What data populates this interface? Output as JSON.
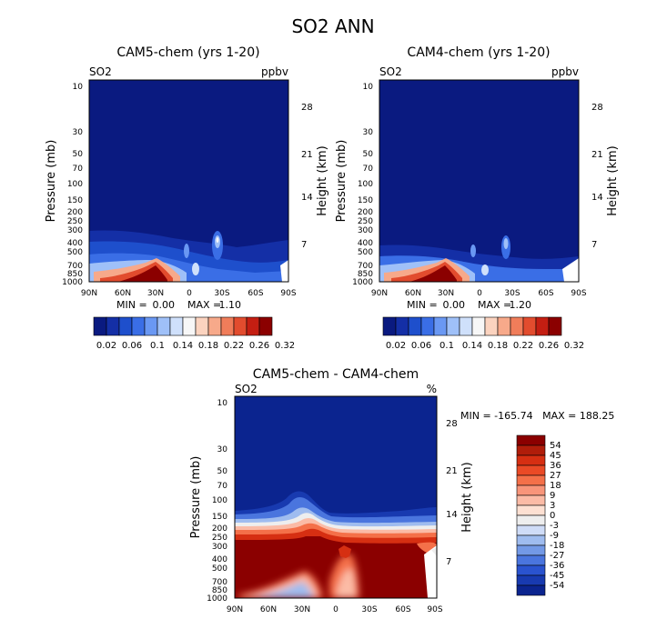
{
  "figure": {
    "title": "SO2 ANN",
    "panels": [
      {
        "title": "CAM5-chem (yrs 1-20)",
        "left_label": "SO2",
        "right_label": "ppbv",
        "min_label": "MIN =",
        "min_value": "0.00",
        "max_label": "MAX =",
        "max_value": "1.10"
      },
      {
        "title": "CAM4-chem (yrs 1-20)",
        "left_label": "SO2",
        "right_label": "ppbv",
        "min_label": "MIN =",
        "min_value": "0.00",
        "max_label": "MAX =",
        "max_value": "1.20"
      },
      {
        "title": "CAM5-chem - CAM4-chem",
        "left_label": "SO2",
        "right_label": "%",
        "minmax_text": "MIN = -165.74   MAX = 188.25"
      }
    ]
  },
  "chart_data": [
    {
      "type": "heatmap",
      "title": "CAM5-chem (yrs 1-20)",
      "variable": "SO2",
      "units": "ppbv",
      "ylabel": "Pressure (mb)",
      "ylabel_right": "Height (km)",
      "x_ticks": [
        "90N",
        "60N",
        "30N",
        "0",
        "30S",
        "60S",
        "90S"
      ],
      "x_range": [
        90,
        -90
      ],
      "y_ticks": [
        "10",
        "30",
        "50",
        "70",
        "100",
        "150",
        "200",
        "250",
        "300",
        "400",
        "500",
        "700",
        "850",
        "1000"
      ],
      "y_range": [
        10,
        1000
      ],
      "height_ticks": [
        "28",
        "21",
        "14",
        "7"
      ],
      "min": 0.0,
      "max": 1.1,
      "colorbar_levels": [
        "0.02",
        "0.06",
        "0.1",
        "0.14",
        "0.18",
        "0.22",
        "0.26",
        "0.32"
      ],
      "features": [
        {
          "feature": "maximum",
          "lat": 35,
          "pressure": 900,
          "value": 1.1
        },
        {
          "feature": "plume",
          "lat": -30,
          "pressure": 350,
          "value": 0.2
        }
      ]
    },
    {
      "type": "heatmap",
      "title": "CAM4-chem (yrs 1-20)",
      "variable": "SO2",
      "units": "ppbv",
      "ylabel": "Pressure (mb)",
      "ylabel_right": "Height (km)",
      "x_ticks": [
        "90N",
        "60N",
        "30N",
        "0",
        "30S",
        "60S",
        "90S"
      ],
      "x_range": [
        90,
        -90
      ],
      "y_ticks": [
        "10",
        "30",
        "50",
        "70",
        "100",
        "150",
        "200",
        "250",
        "300",
        "400",
        "500",
        "700",
        "850",
        "1000"
      ],
      "y_range": [
        10,
        1000
      ],
      "height_ticks": [
        "28",
        "21",
        "14",
        "7"
      ],
      "min": 0.0,
      "max": 1.2,
      "colorbar_levels": [
        "0.02",
        "0.06",
        "0.1",
        "0.14",
        "0.18",
        "0.22",
        "0.26",
        "0.32"
      ],
      "features": [
        {
          "feature": "maximum",
          "lat": 35,
          "pressure": 900,
          "value": 1.2
        },
        {
          "feature": "plume",
          "lat": -30,
          "pressure": 400,
          "value": 0.15
        }
      ]
    },
    {
      "type": "heatmap",
      "title": "CAM5-chem - CAM4-chem",
      "variable": "SO2",
      "units": "%",
      "ylabel": "Pressure (mb)",
      "ylabel_right": "Height (km)",
      "x_ticks": [
        "90N",
        "60N",
        "30N",
        "0",
        "30S",
        "60S",
        "90S"
      ],
      "x_range": [
        90,
        -90
      ],
      "y_ticks": [
        "10",
        "30",
        "50",
        "70",
        "100",
        "150",
        "200",
        "250",
        "300",
        "400",
        "500",
        "700",
        "850",
        "1000"
      ],
      "y_range": [
        10,
        1000
      ],
      "height_ticks": [
        "28",
        "21",
        "14",
        "7"
      ],
      "min": -165.74,
      "max": 188.25,
      "colorbar_levels": [
        "54",
        "45",
        "36",
        "27",
        "18",
        "9",
        "3",
        "0",
        "-3",
        "-9",
        "-18",
        "-27",
        "-36",
        "-45",
        "-54"
      ],
      "features": [
        {
          "feature": "positive_band",
          "pressure_range": [
            200,
            1000
          ],
          "value": 54
        },
        {
          "feature": "negative_above",
          "pressure_range": [
            10,
            150
          ],
          "value": -54
        }
      ]
    }
  ],
  "colors": {
    "seq": [
      "#0a1a80",
      "#142fa6",
      "#1e4fcc",
      "#3a6ee6",
      "#6a98f3",
      "#9fc0f8",
      "#cfe0fb",
      "#f7f7f7",
      "#fbd3bf",
      "#f7a98a",
      "#f07d5a",
      "#e24c2e",
      "#c41e12",
      "#8b0000"
    ],
    "div": [
      "#8b0000",
      "#b01d0a",
      "#d62f12",
      "#ea4a26",
      "#f47049",
      "#f8957a",
      "#fbbba6",
      "#fde0d2",
      "#eeeeee",
      "#cfdcf7",
      "#9fbcef",
      "#7399e6",
      "#4a75de",
      "#2a53cf",
      "#183ab0",
      "#0b248f"
    ]
  }
}
